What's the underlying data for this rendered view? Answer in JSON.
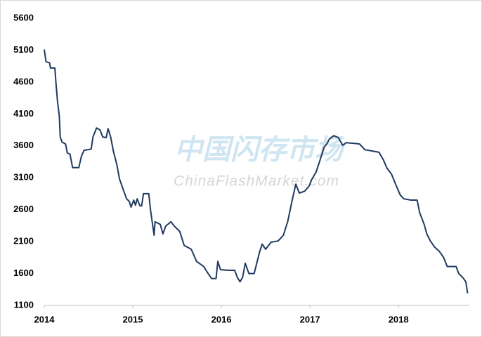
{
  "chart_data": {
    "type": "line",
    "watermark_cn": "中国闪存市场",
    "watermark_en": "ChinaFlashMarket.com",
    "xlim": [
      2014,
      2018.8
    ],
    "xticks": [
      2014,
      2015,
      2016,
      2017,
      2018
    ],
    "ylim": [
      1100,
      5600
    ],
    "yticks": [
      1100,
      1600,
      2100,
      2600,
      3100,
      3600,
      4100,
      4600,
      5100,
      5600
    ],
    "grid": false,
    "series": [
      {
        "color": "#1f3a60",
        "x": [
          2014.0,
          2014.02,
          2014.06,
          2014.07,
          2014.12,
          2014.13,
          2014.15,
          2014.17,
          2014.18,
          2014.2,
          2014.24,
          2014.26,
          2014.29,
          2014.32,
          2014.39,
          2014.42,
          2014.45,
          2014.53,
          2014.55,
          2014.59,
          2014.63,
          2014.66,
          2014.7,
          2014.72,
          2014.75,
          2014.78,
          2014.82,
          2014.85,
          2014.89,
          2014.93,
          2014.96,
          2014.98,
          2015.01,
          2015.03,
          2015.05,
          2015.08,
          2015.1,
          2015.12,
          2015.18,
          2015.2,
          2015.24,
          2015.25,
          2015.31,
          2015.34,
          2015.37,
          2015.43,
          2015.47,
          2015.53,
          2015.58,
          2015.66,
          2015.72,
          2015.8,
          2015.85,
          2015.89,
          2015.94,
          2015.96,
          2015.99,
          2016.08,
          2016.15,
          2016.18,
          2016.21,
          2016.24,
          2016.27,
          2016.31,
          2016.37,
          2016.43,
          2016.46,
          2016.5,
          2016.56,
          2016.64,
          2016.7,
          2016.75,
          2016.8,
          2016.84,
          2016.88,
          2016.94,
          2016.99,
          2017.02,
          2017.07,
          2017.11,
          2017.16,
          2017.19,
          2017.22,
          2017.27,
          2017.32,
          2017.37,
          2017.41,
          2017.49,
          2017.56,
          2017.62,
          2017.7,
          2017.78,
          2017.83,
          2017.87,
          2017.92,
          2017.97,
          2018.02,
          2018.06,
          2018.14,
          2018.21,
          2018.24,
          2018.29,
          2018.32,
          2018.36,
          2018.41,
          2018.46,
          2018.51,
          2018.55,
          2018.65,
          2018.68,
          2018.73,
          2018.76,
          2018.78
        ],
        "values": [
          5110,
          4920,
          4900,
          4820,
          4820,
          4620,
          4290,
          4070,
          3740,
          3660,
          3630,
          3490,
          3470,
          3260,
          3260,
          3440,
          3530,
          3550,
          3740,
          3880,
          3850,
          3740,
          3730,
          3870,
          3740,
          3520,
          3300,
          3080,
          2920,
          2770,
          2730,
          2640,
          2750,
          2670,
          2770,
          2660,
          2660,
          2850,
          2850,
          2590,
          2200,
          2410,
          2370,
          2220,
          2340,
          2410,
          2340,
          2260,
          2040,
          1980,
          1790,
          1710,
          1600,
          1520,
          1520,
          1790,
          1660,
          1650,
          1650,
          1540,
          1470,
          1540,
          1760,
          1600,
          1600,
          1930,
          2060,
          1980,
          2090,
          2110,
          2200,
          2420,
          2750,
          3000,
          2860,
          2890,
          2970,
          3070,
          3190,
          3360,
          3580,
          3630,
          3710,
          3760,
          3730,
          3610,
          3650,
          3640,
          3630,
          3540,
          3520,
          3500,
          3380,
          3250,
          3160,
          2990,
          2830,
          2770,
          2750,
          2750,
          2550,
          2370,
          2220,
          2110,
          2010,
          1950,
          1850,
          1710,
          1710,
          1600,
          1530,
          1470,
          1290
        ]
      }
    ]
  }
}
